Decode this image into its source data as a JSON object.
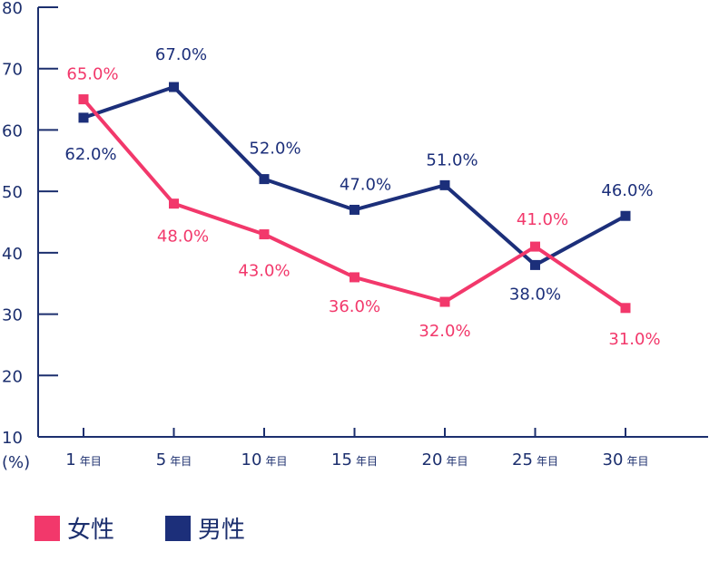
{
  "chart_data": {
    "type": "line",
    "categories": [
      "1",
      "5",
      "10",
      "15",
      "20",
      "25",
      "30"
    ],
    "x_unit": "年目",
    "ylabel": "(%)",
    "ylim": [
      10,
      80
    ],
    "yticks": [
      10,
      20,
      30,
      40,
      50,
      60,
      70,
      80
    ],
    "grid": false,
    "legend_position": "bottom-left",
    "series": [
      {
        "name": "女性",
        "color": "#f2386b",
        "values": [
          65.0,
          48.0,
          43.0,
          36.0,
          32.0,
          41.0,
          31.0
        ],
        "labels": [
          "65.0%",
          "48.0%",
          "43.0%",
          "36.0%",
          "32.0%",
          "41.0%",
          "31.0%"
        ]
      },
      {
        "name": "男性",
        "color": "#1c2f7a",
        "values": [
          62.0,
          67.0,
          52.0,
          47.0,
          51.0,
          38.0,
          46.0
        ],
        "labels": [
          "62.0%",
          "67.0%",
          "52.0%",
          "47.0%",
          "51.0%",
          "38.0%",
          "46.0%"
        ]
      }
    ]
  },
  "legend": {
    "female_label": "女性",
    "male_label": "男性"
  }
}
